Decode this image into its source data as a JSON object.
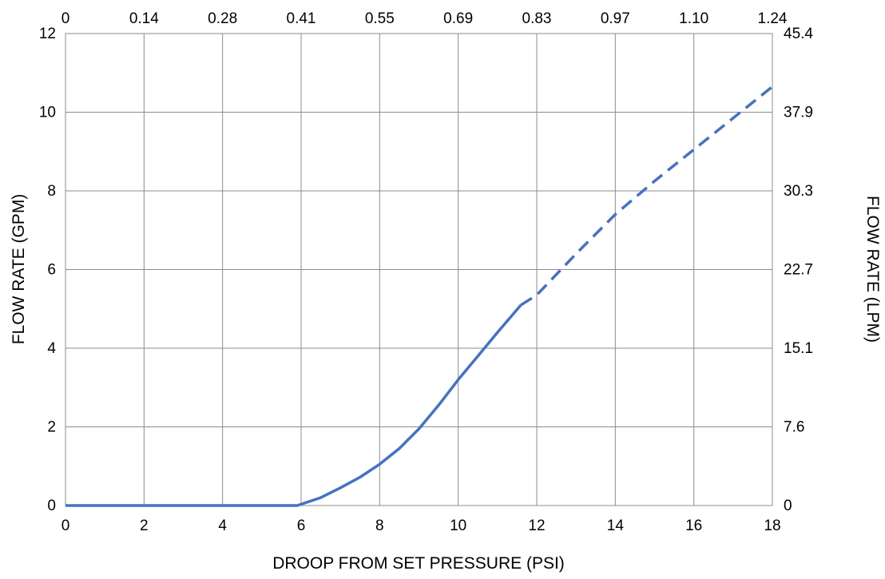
{
  "chart_data": {
    "type": "line",
    "title": "",
    "xlabel": "DROOP FROM SET PRESSURE (PSI)",
    "ylabel": "FLOW RATE (GPM)",
    "y2label": "FLOW RATE (LPM)",
    "xlim": [
      0,
      18
    ],
    "ylim": [
      0,
      12
    ],
    "x_ticks": [
      "0",
      "2",
      "4",
      "6",
      "8",
      "10",
      "12",
      "14",
      "16",
      "18"
    ],
    "y_ticks": [
      "0",
      "2",
      "4",
      "6",
      "8",
      "10",
      "12"
    ],
    "x2_ticks": [
      "0",
      "0.14",
      "0.28",
      "0.41",
      "0.55",
      "0.69",
      "0.83",
      "0.97",
      "1.10",
      "1.24"
    ],
    "y2_ticks": [
      "0",
      "7.6",
      "15.1",
      "22.7",
      "30.3",
      "37.9",
      "45.4"
    ],
    "grid": true,
    "legend": "none",
    "line_color": "#4472c4",
    "series": [
      {
        "style": "solid",
        "x": [
          0,
          5.9,
          6.5,
          7.0,
          7.5,
          8.0,
          8.5,
          9.0,
          9.5,
          10.0,
          10.5,
          11.0,
          11.6
        ],
        "y": [
          0,
          0,
          0.2,
          0.45,
          0.72,
          1.05,
          1.45,
          1.95,
          2.55,
          3.2,
          3.8,
          4.4,
          5.1
        ]
      },
      {
        "style": "dashed",
        "x": [
          11.6,
          12.0,
          13.0,
          14.0,
          15.0,
          16.0,
          17.0,
          18.0
        ],
        "y": [
          5.1,
          5.35,
          6.4,
          7.4,
          8.25,
          9.05,
          9.85,
          10.65
        ]
      }
    ]
  }
}
